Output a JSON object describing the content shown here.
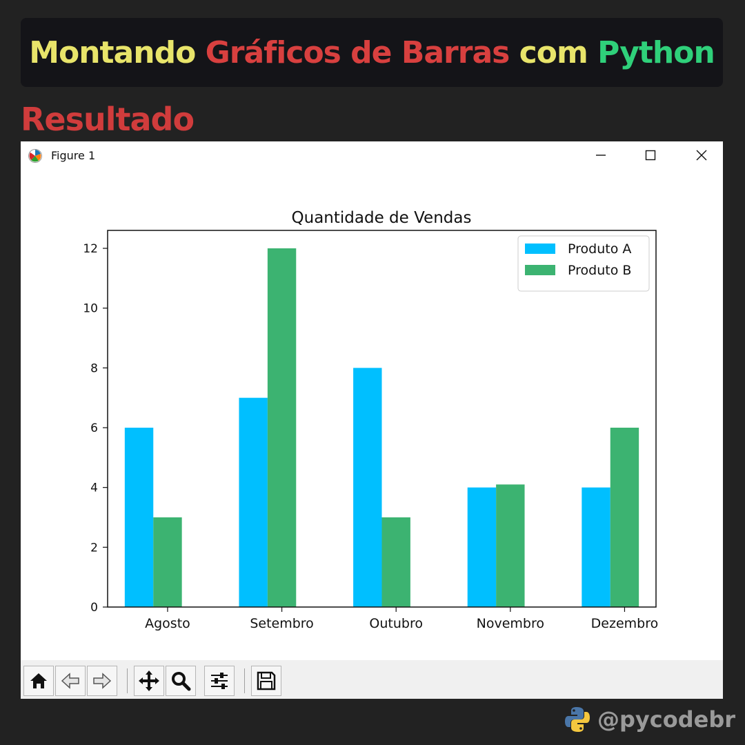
{
  "header": {
    "title_parts": [
      {
        "text": "Montando ",
        "color": "#e8e46a"
      },
      {
        "text": "Gráficos de Barras ",
        "color": "#d8403f"
      },
      {
        "text": "com ",
        "color": "#e8e46a"
      },
      {
        "text": "Python",
        "color": "#2fd07a"
      }
    ]
  },
  "section": {
    "title": "Resultado",
    "color": "#d03c3c"
  },
  "window": {
    "title": "Figure 1",
    "controls": [
      "minimize-icon",
      "maximize-icon",
      "close-icon"
    ]
  },
  "toolbar": {
    "buttons": [
      "home-icon",
      "back-arrow-icon",
      "forward-arrow-icon",
      "pan-icon",
      "zoom-icon",
      "configure-subplots-icon",
      "save-icon"
    ]
  },
  "watermark": {
    "text": "@pycodebr",
    "icon": "python-logo-icon"
  },
  "chart_data": {
    "type": "bar",
    "title": "Quantidade de Vendas",
    "xlabel": "",
    "ylabel": "",
    "categories": [
      "Agosto",
      "Setembro",
      "Outubro",
      "Novembro",
      "Dezembro"
    ],
    "series": [
      {
        "name": "Produto A",
        "values": [
          6,
          7,
          8,
          4,
          4
        ],
        "color": "#00bfff"
      },
      {
        "name": "Produto B",
        "values": [
          3,
          12,
          3,
          4.1,
          6
        ],
        "color": "#3cb371"
      }
    ],
    "yticks": [
      0,
      2,
      4,
      6,
      8,
      10,
      12
    ],
    "ylim": [
      0,
      12.6
    ],
    "xlim": [
      -0.4,
      4.4
    ],
    "bar_width": 0.25,
    "grid": false,
    "legend": "top-right"
  }
}
